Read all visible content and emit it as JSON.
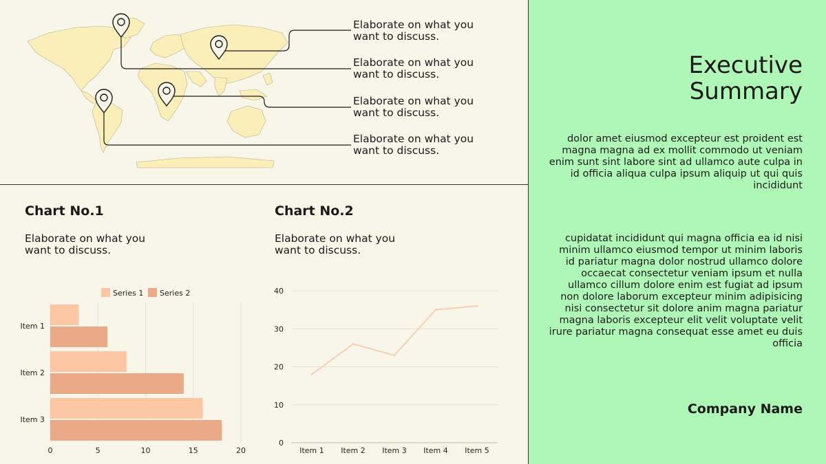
{
  "callouts": [
    "Elaborate on what you want to discuss.",
    "Elaborate on what you want to discuss.",
    "Elaborate on what you want to discuss.",
    "Elaborate on what you want to discuss."
  ],
  "chart1": {
    "title": "Chart No.1",
    "description": "Elaborate on what you want to discuss."
  },
  "chart2": {
    "title": "Chart No.2",
    "description": "Elaborate on what you want to discuss."
  },
  "sidebar": {
    "title_line1": "Executive",
    "title_line2": "Summary",
    "paragraph1": "dolor amet eiusmod excepteur est proident est magna magna ad ex mollit commodo ut veniam enim sunt sint labore sint ad ullamco aute culpa in id officia aliqua culpa ipsum aliquip ut qui quis incididunt",
    "paragraph2": "cupidatat incididunt qui magna officia ea id nisi minim ullamco eiusmod tempor ut minim laboris id pariatur magna dolor nostrud ullamco dolore occaecat consectetur veniam ipsum et nulla ullamco cillum dolore enim est fugiat ad ipsum non dolore laborum excepteur minim adipisicing nisi consectetur sit dolore anim magna pariatur magna laboris excepteur elit velit voluptate velit irure pariatur magna consequat esse amet eu duis officia",
    "company": "Company Name"
  },
  "colors": {
    "series1": "#fcc6a4",
    "series2": "#eaaa88",
    "line": "#f7cfb5",
    "sidebar_bg": "#aef7b6",
    "map_fill": "#faefb8"
  },
  "chart_data": [
    {
      "type": "bar",
      "orientation": "horizontal",
      "categories": [
        "Item 1",
        "Item 2",
        "Item 3"
      ],
      "series": [
        {
          "name": "Series 1",
          "values": [
            3,
            8,
            16
          ]
        },
        {
          "name": "Series 2",
          "values": [
            6,
            14,
            18
          ]
        }
      ],
      "xlim": [
        0,
        20
      ],
      "xticks": [
        "0",
        "5",
        "10",
        "15",
        "20"
      ],
      "legend": "top"
    },
    {
      "type": "line",
      "categories": [
        "Item 1",
        "Item 2",
        "Item 3",
        "Item 4",
        "Item 5"
      ],
      "values": [
        18,
        26,
        23,
        35,
        36
      ],
      "ylim": [
        0,
        40
      ],
      "yticks": [
        "0",
        "10",
        "20",
        "30",
        "40"
      ],
      "grid": true
    }
  ]
}
